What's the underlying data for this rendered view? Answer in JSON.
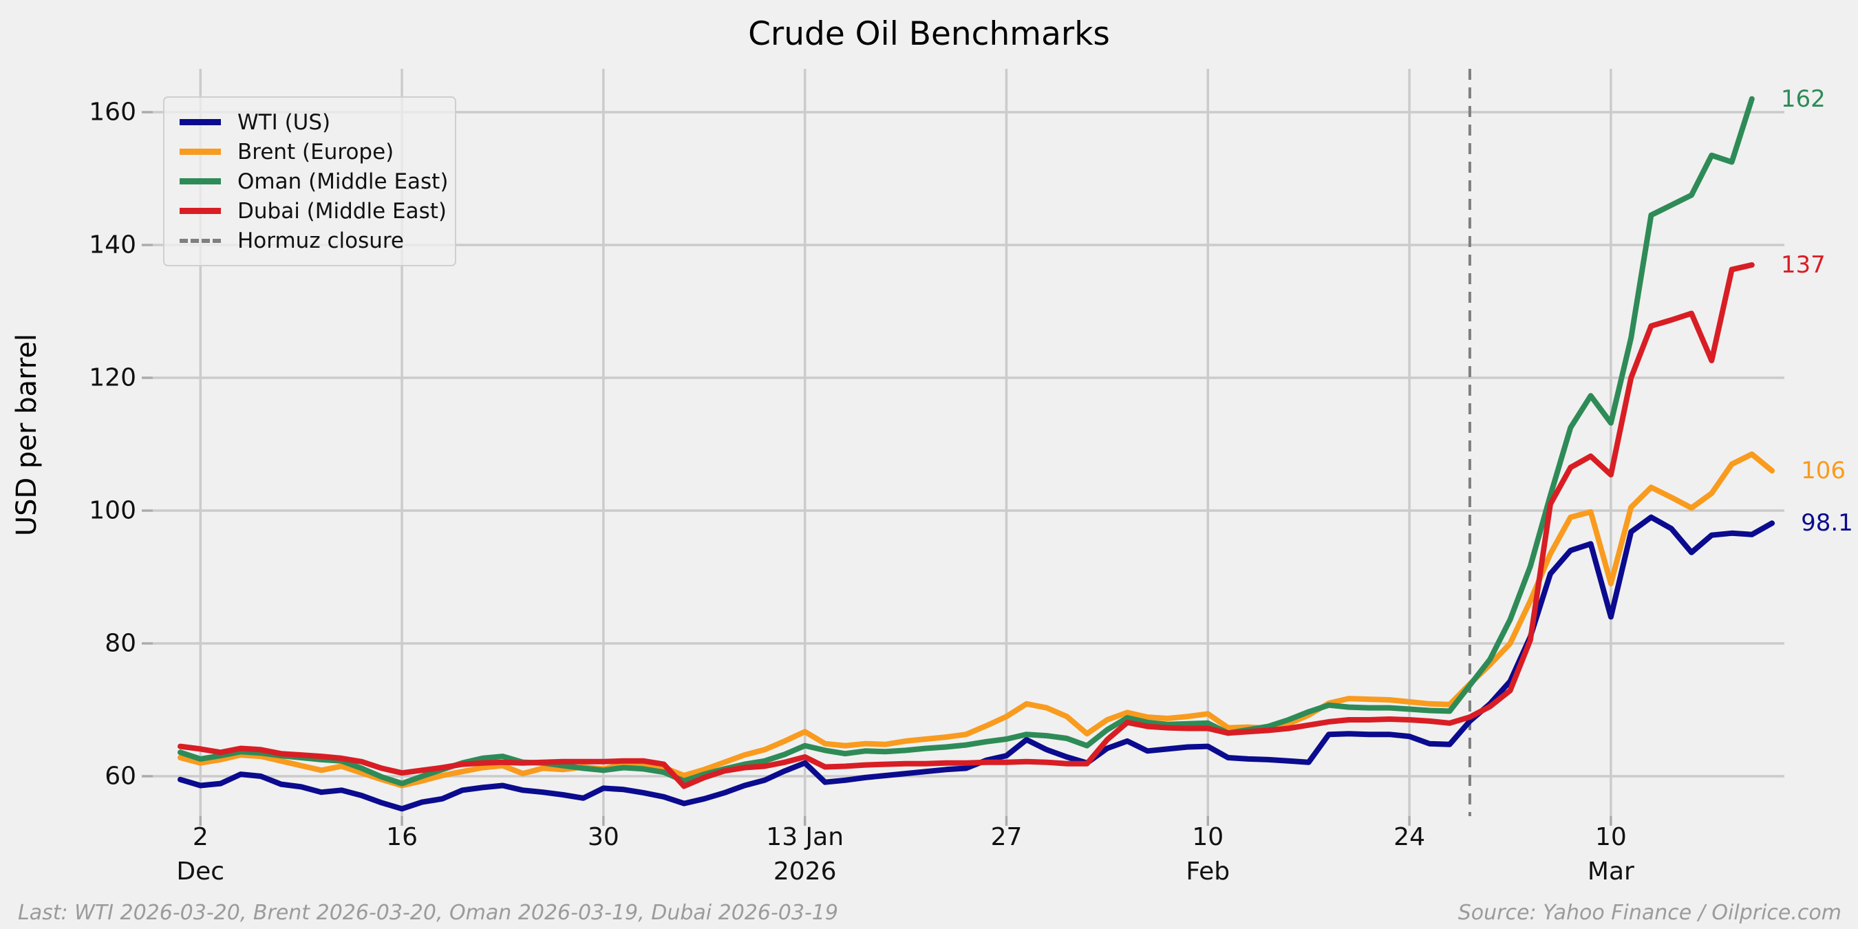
{
  "title": "Crude Oil Benchmarks",
  "ylabel": "USD per barrel",
  "footer": {
    "left": "Last: WTI 2026-03-20, Brent 2026-03-20, Oman 2026-03-19, Dubai 2026-03-19",
    "right": "Source: Yahoo Finance / Oilprice.com"
  },
  "colors": {
    "background": "#F0F0F0",
    "grid": "#CBCBCB",
    "tick_mark": "#ACACAC",
    "text": "#111111",
    "footer_text": "#9B9B9B",
    "wti": "#0B0B8F",
    "brent": "#F99B1E",
    "oman": "#2E8B57",
    "dubai": "#D81E24",
    "hormuz_line": "#7F7F7F"
  },
  "chart_data": {
    "type": "line",
    "title": "Crude Oil Benchmarks",
    "xlabel": "",
    "ylabel": "USD per barrel",
    "grid": true,
    "legend_position": "upper left",
    "ylim": [
      53,
      168
    ],
    "yticks": [
      60,
      80,
      100,
      120,
      140,
      160
    ],
    "xticks": [
      {
        "index": 1,
        "label": "2",
        "sub": "Dec"
      },
      {
        "index": 11,
        "label": "16",
        "sub": ""
      },
      {
        "index": 21,
        "label": "30",
        "sub": ""
      },
      {
        "index": 31,
        "label": "13 Jan",
        "sub": "2026"
      },
      {
        "index": 41,
        "label": "27",
        "sub": ""
      },
      {
        "index": 51,
        "label": "10",
        "sub": "Feb"
      },
      {
        "index": 61,
        "label": "24",
        "sub": ""
      },
      {
        "index": 71,
        "label": "10",
        "sub": "Mar"
      }
    ],
    "x_dates": [
      "2025-12-01",
      "2025-12-02",
      "2025-12-03",
      "2025-12-04",
      "2025-12-05",
      "2025-12-08",
      "2025-12-09",
      "2025-12-10",
      "2025-12-11",
      "2025-12-12",
      "2025-12-15",
      "2025-12-16",
      "2025-12-17",
      "2025-12-18",
      "2025-12-19",
      "2025-12-22",
      "2025-12-23",
      "2025-12-24",
      "2025-12-25",
      "2025-12-26",
      "2025-12-29",
      "2025-12-30",
      "2025-12-31",
      "2026-01-01",
      "2026-01-02",
      "2026-01-05",
      "2026-01-06",
      "2026-01-07",
      "2026-01-08",
      "2026-01-09",
      "2026-01-12",
      "2026-01-13",
      "2026-01-14",
      "2026-01-15",
      "2026-01-16",
      "2026-01-19",
      "2026-01-20",
      "2026-01-21",
      "2026-01-22",
      "2026-01-23",
      "2026-01-26",
      "2026-01-27",
      "2026-01-28",
      "2026-01-29",
      "2026-01-30",
      "2026-02-02",
      "2026-02-03",
      "2026-02-04",
      "2026-02-05",
      "2026-02-06",
      "2026-02-09",
      "2026-02-10",
      "2026-02-11",
      "2026-02-12",
      "2026-02-13",
      "2026-02-16",
      "2026-02-17",
      "2026-02-18",
      "2026-02-19",
      "2026-02-20",
      "2026-02-23",
      "2026-02-24",
      "2026-02-25",
      "2026-02-26",
      "2026-02-27",
      "2026-03-02",
      "2026-03-03",
      "2026-03-04",
      "2026-03-05",
      "2026-03-06",
      "2026-03-09",
      "2026-03-10",
      "2026-03-11",
      "2026-03-12",
      "2026-03-13",
      "2026-03-16",
      "2026-03-17",
      "2026-03-18",
      "2026-03-19",
      "2026-03-20"
    ],
    "series": [
      {
        "name": "WTI (US)",
        "color": "#0B0B8F",
        "end_label": "98.1",
        "last_date": "2026-03-20",
        "values": [
          59.5,
          58.6,
          58.9,
          60.3,
          60.0,
          58.8,
          58.4,
          57.6,
          57.9,
          57.1,
          56.0,
          55.1,
          56.1,
          56.6,
          57.9,
          58.3,
          58.6,
          57.9,
          57.6,
          57.2,
          56.7,
          58.2,
          58.0,
          57.5,
          56.9,
          55.9,
          56.6,
          57.5,
          58.6,
          59.4,
          60.8,
          62.0,
          59.1,
          59.4,
          59.8,
          60.1,
          60.4,
          60.7,
          61.0,
          61.2,
          62.4,
          63.1,
          65.5,
          64.0,
          62.9,
          62.0,
          64.2,
          65.3,
          63.8,
          64.1,
          64.4,
          64.5,
          62.8,
          62.6,
          62.5,
          62.3,
          62.1,
          66.3,
          66.4,
          66.3,
          66.3,
          66.0,
          64.9,
          64.8,
          68.3,
          70.9,
          74.3,
          81.0,
          90.5,
          94.0,
          95.0,
          84.0,
          96.8,
          99.0,
          97.3,
          93.7,
          96.3,
          96.6,
          96.4,
          98.1
        ]
      },
      {
        "name": "Brent (Europe)",
        "color": "#F99B1E",
        "end_label": "106",
        "last_date": "2026-03-20",
        "values": [
          62.8,
          62.0,
          62.5,
          63.2,
          63.0,
          62.3,
          61.6,
          60.9,
          61.5,
          60.5,
          59.5,
          58.6,
          59.3,
          60.1,
          60.7,
          61.3,
          61.6,
          60.4,
          61.2,
          61.0,
          61.4,
          61.1,
          61.8,
          61.6,
          61.3,
          60.1,
          61.0,
          62.1,
          63.2,
          64.0,
          65.3,
          66.7,
          64.9,
          64.6,
          64.9,
          64.8,
          65.3,
          65.6,
          65.9,
          66.3,
          67.6,
          69.0,
          70.9,
          70.3,
          69.0,
          66.4,
          68.5,
          69.6,
          68.9,
          68.7,
          69.0,
          69.4,
          67.3,
          67.4,
          67.2,
          67.9,
          69.2,
          71.0,
          71.7,
          71.6,
          71.5,
          71.2,
          70.9,
          70.8,
          73.9,
          76.8,
          80.0,
          86.4,
          93.5,
          99.0,
          99.8,
          89.0,
          100.5,
          103.5,
          102.0,
          100.4,
          102.6,
          107.0,
          108.5,
          106.0
        ]
      },
      {
        "name": "Oman (Middle East)",
        "color": "#2E8B57",
        "end_label": "162",
        "last_date": "2026-03-19",
        "values": [
          63.6,
          62.6,
          63.1,
          63.7,
          63.5,
          63.1,
          62.8,
          62.5,
          62.3,
          61.2,
          59.9,
          58.9,
          60.0,
          61.0,
          62.0,
          62.7,
          63.0,
          62.1,
          62.0,
          61.6,
          61.2,
          60.9,
          61.3,
          61.1,
          60.6,
          59.3,
          60.3,
          61.1,
          61.8,
          62.3,
          63.3,
          64.6,
          63.9,
          63.4,
          63.8,
          63.7,
          63.9,
          64.2,
          64.4,
          64.7,
          65.2,
          65.6,
          66.3,
          66.1,
          65.7,
          64.6,
          67.0,
          68.8,
          68.1,
          67.8,
          67.9,
          68.0,
          66.5,
          67.0,
          67.5,
          68.5,
          69.7,
          70.7,
          70.4,
          70.3,
          70.3,
          70.1,
          69.9,
          69.8,
          73.7,
          77.6,
          83.6,
          91.6,
          102.3,
          112.5,
          117.3,
          113.2,
          126.0,
          144.5,
          146.0,
          147.5,
          153.5,
          152.5,
          162.0,
          null
        ]
      },
      {
        "name": "Dubai (Middle East)",
        "color": "#D81E24",
        "end_label": "137",
        "last_date": "2026-03-19",
        "values": [
          64.5,
          64.1,
          63.6,
          64.2,
          64.0,
          63.4,
          63.2,
          63.0,
          62.7,
          62.2,
          61.2,
          60.5,
          60.9,
          61.3,
          61.8,
          62.0,
          62.1,
          62.0,
          62.1,
          62.2,
          62.2,
          62.2,
          62.3,
          62.3,
          61.8,
          58.5,
          59.8,
          60.8,
          61.3,
          61.5,
          62.1,
          62.9,
          61.4,
          61.5,
          61.7,
          61.8,
          61.9,
          61.9,
          62.0,
          62.0,
          62.1,
          62.1,
          62.2,
          62.1,
          61.9,
          61.9,
          65.5,
          68.1,
          67.5,
          67.3,
          67.2,
          67.2,
          66.5,
          66.7,
          66.9,
          67.2,
          67.7,
          68.2,
          68.5,
          68.5,
          68.6,
          68.5,
          68.3,
          68.0,
          68.9,
          70.5,
          72.9,
          80.5,
          101.0,
          106.5,
          108.2,
          105.4,
          120.0,
          127.8,
          128.7,
          129.7,
          122.6,
          136.3,
          137.0,
          null
        ]
      }
    ],
    "vline": {
      "label": "Hormuz closure",
      "date": "2026-02-27",
      "index": 64,
      "color": "#7F7F7F",
      "style": "dashed"
    }
  }
}
